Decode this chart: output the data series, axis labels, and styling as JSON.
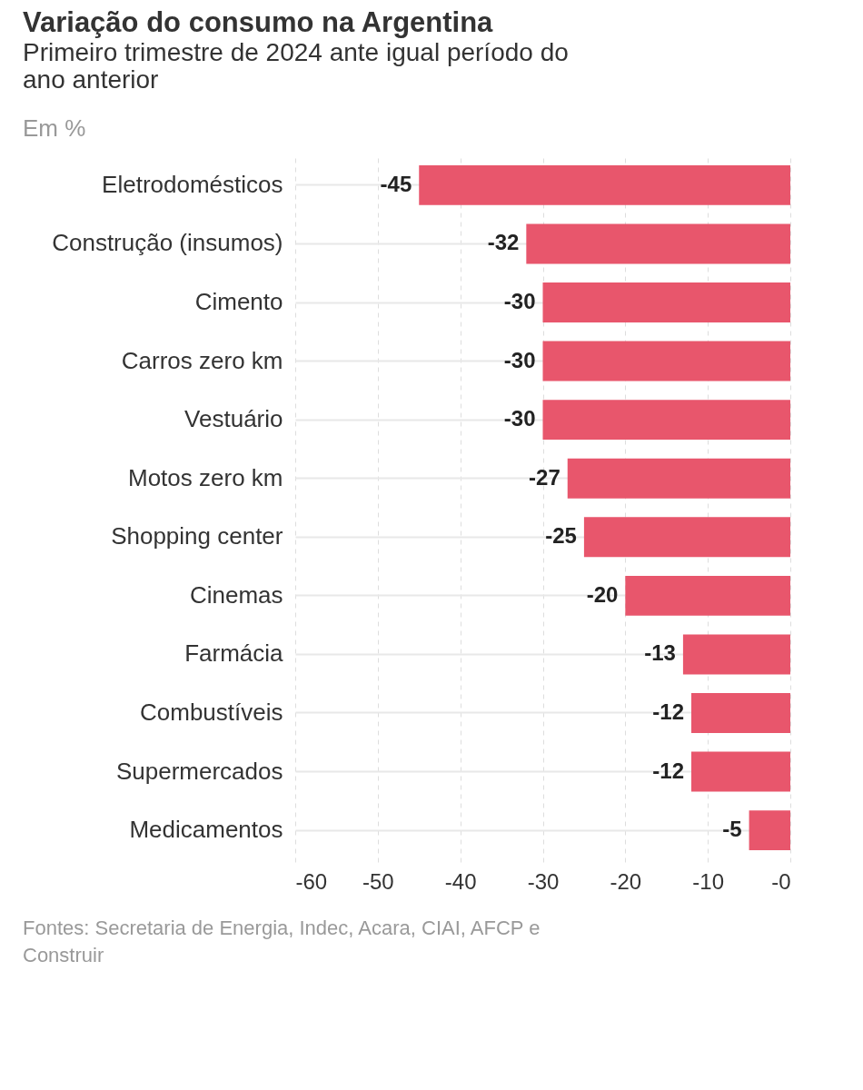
{
  "chart_data": {
    "type": "bar",
    "orientation": "horizontal",
    "title": "Variação do consumo na Argentina",
    "subtitle": "Primeiro trimestre de 2024 ante igual período do ano anterior",
    "annotations": [
      "Em %",
      "Fontes: Secretaria de Energia, Indec, Acara, CIAI, AFCP e Construir"
    ],
    "categories": [
      "Eletrodomésticos",
      "Construção (insumos)",
      "Cimento",
      "Carros zero km",
      "Vestuário",
      "Motos zero km",
      "Shopping center",
      "Cinemas",
      "Farmácia",
      "Combustíveis",
      "Supermercados",
      "Medicamentos"
    ],
    "values": [
      -45,
      -32,
      -30,
      -30,
      -30,
      -27,
      -25,
      -20,
      -13,
      -12,
      -12,
      -5
    ],
    "color": "#e8566c",
    "xlim": [
      -60,
      0
    ],
    "xticks": [
      -60,
      -50,
      -40,
      -30,
      -20,
      -10,
      {
        "value": 0,
        "label": "-0"
      }
    ],
    "grid": true,
    "data_labels": true
  }
}
